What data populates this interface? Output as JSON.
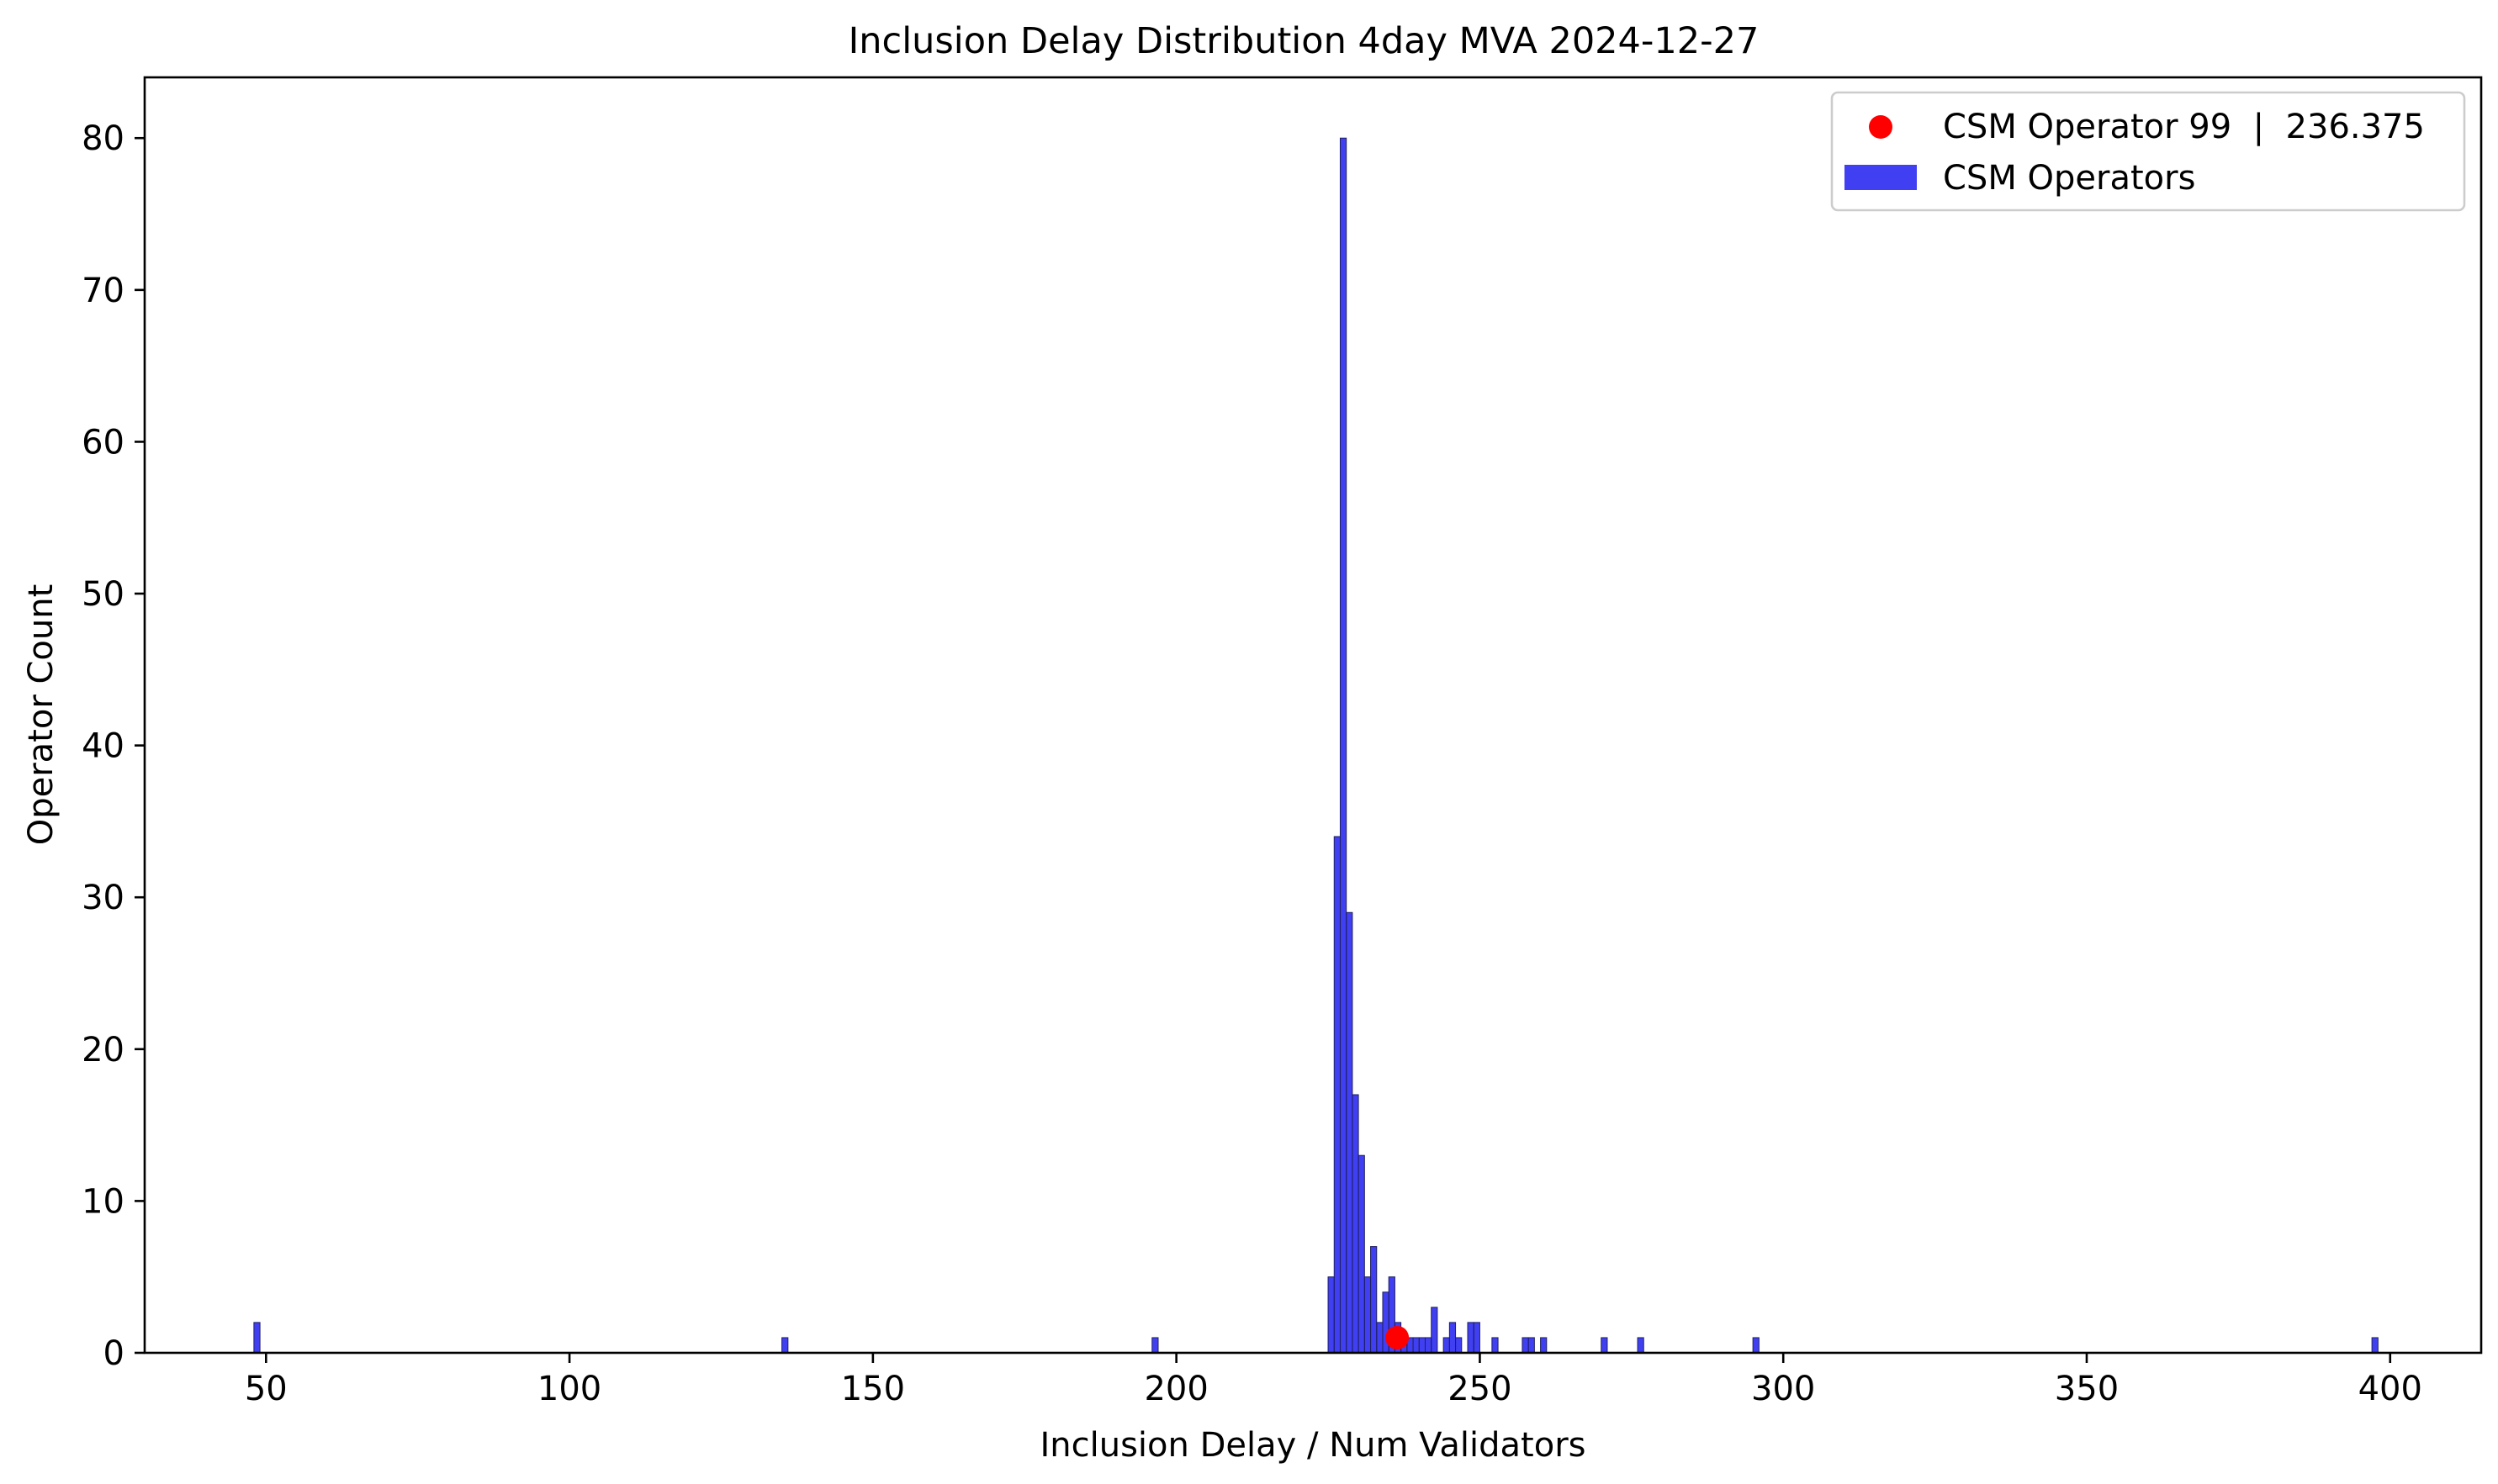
{
  "chart_data": {
    "type": "bar",
    "title": "Inclusion Delay Distribution 4day MVA 2024-12-27",
    "xlabel": "Inclusion Delay / Num Validators",
    "ylabel": "Operator Count",
    "xlim": [
      30,
      415
    ],
    "ylim": [
      0,
      84
    ],
    "bin_width": 1,
    "x_ticks": [
      50,
      100,
      150,
      200,
      250,
      300,
      350,
      400
    ],
    "y_ticks": [
      0,
      10,
      20,
      30,
      40,
      50,
      60,
      70,
      80
    ],
    "grid": false,
    "legend_position": "top-right",
    "histogram": {
      "name": "CSM Operators",
      "color": "#0000ee",
      "bins": [
        {
          "x": 48,
          "count": 2
        },
        {
          "x": 135,
          "count": 1
        },
        {
          "x": 196,
          "count": 1
        },
        {
          "x": 225,
          "count": 5
        },
        {
          "x": 226,
          "count": 34
        },
        {
          "x": 227,
          "count": 80
        },
        {
          "x": 228,
          "count": 29
        },
        {
          "x": 229,
          "count": 17
        },
        {
          "x": 230,
          "count": 13
        },
        {
          "x": 231,
          "count": 5
        },
        {
          "x": 232,
          "count": 7
        },
        {
          "x": 233,
          "count": 2
        },
        {
          "x": 234,
          "count": 4
        },
        {
          "x": 235,
          "count": 5
        },
        {
          "x": 236,
          "count": 2
        },
        {
          "x": 237,
          "count": 1
        },
        {
          "x": 238,
          "count": 1
        },
        {
          "x": 239,
          "count": 1
        },
        {
          "x": 240,
          "count": 1
        },
        {
          "x": 241,
          "count": 1
        },
        {
          "x": 242,
          "count": 3
        },
        {
          "x": 244,
          "count": 1
        },
        {
          "x": 245,
          "count": 2
        },
        {
          "x": 246,
          "count": 1
        },
        {
          "x": 248,
          "count": 2
        },
        {
          "x": 249,
          "count": 2
        },
        {
          "x": 252,
          "count": 1
        },
        {
          "x": 257,
          "count": 1
        },
        {
          "x": 258,
          "count": 1
        },
        {
          "x": 260,
          "count": 1
        },
        {
          "x": 270,
          "count": 1
        },
        {
          "x": 276,
          "count": 1
        },
        {
          "x": 295,
          "count": 1
        },
        {
          "x": 397,
          "count": 1
        }
      ]
    },
    "highlight": {
      "name": "CSM Operator 99  |  236.375",
      "x": 236.375,
      "y": 1,
      "color": "#ff0000"
    }
  }
}
